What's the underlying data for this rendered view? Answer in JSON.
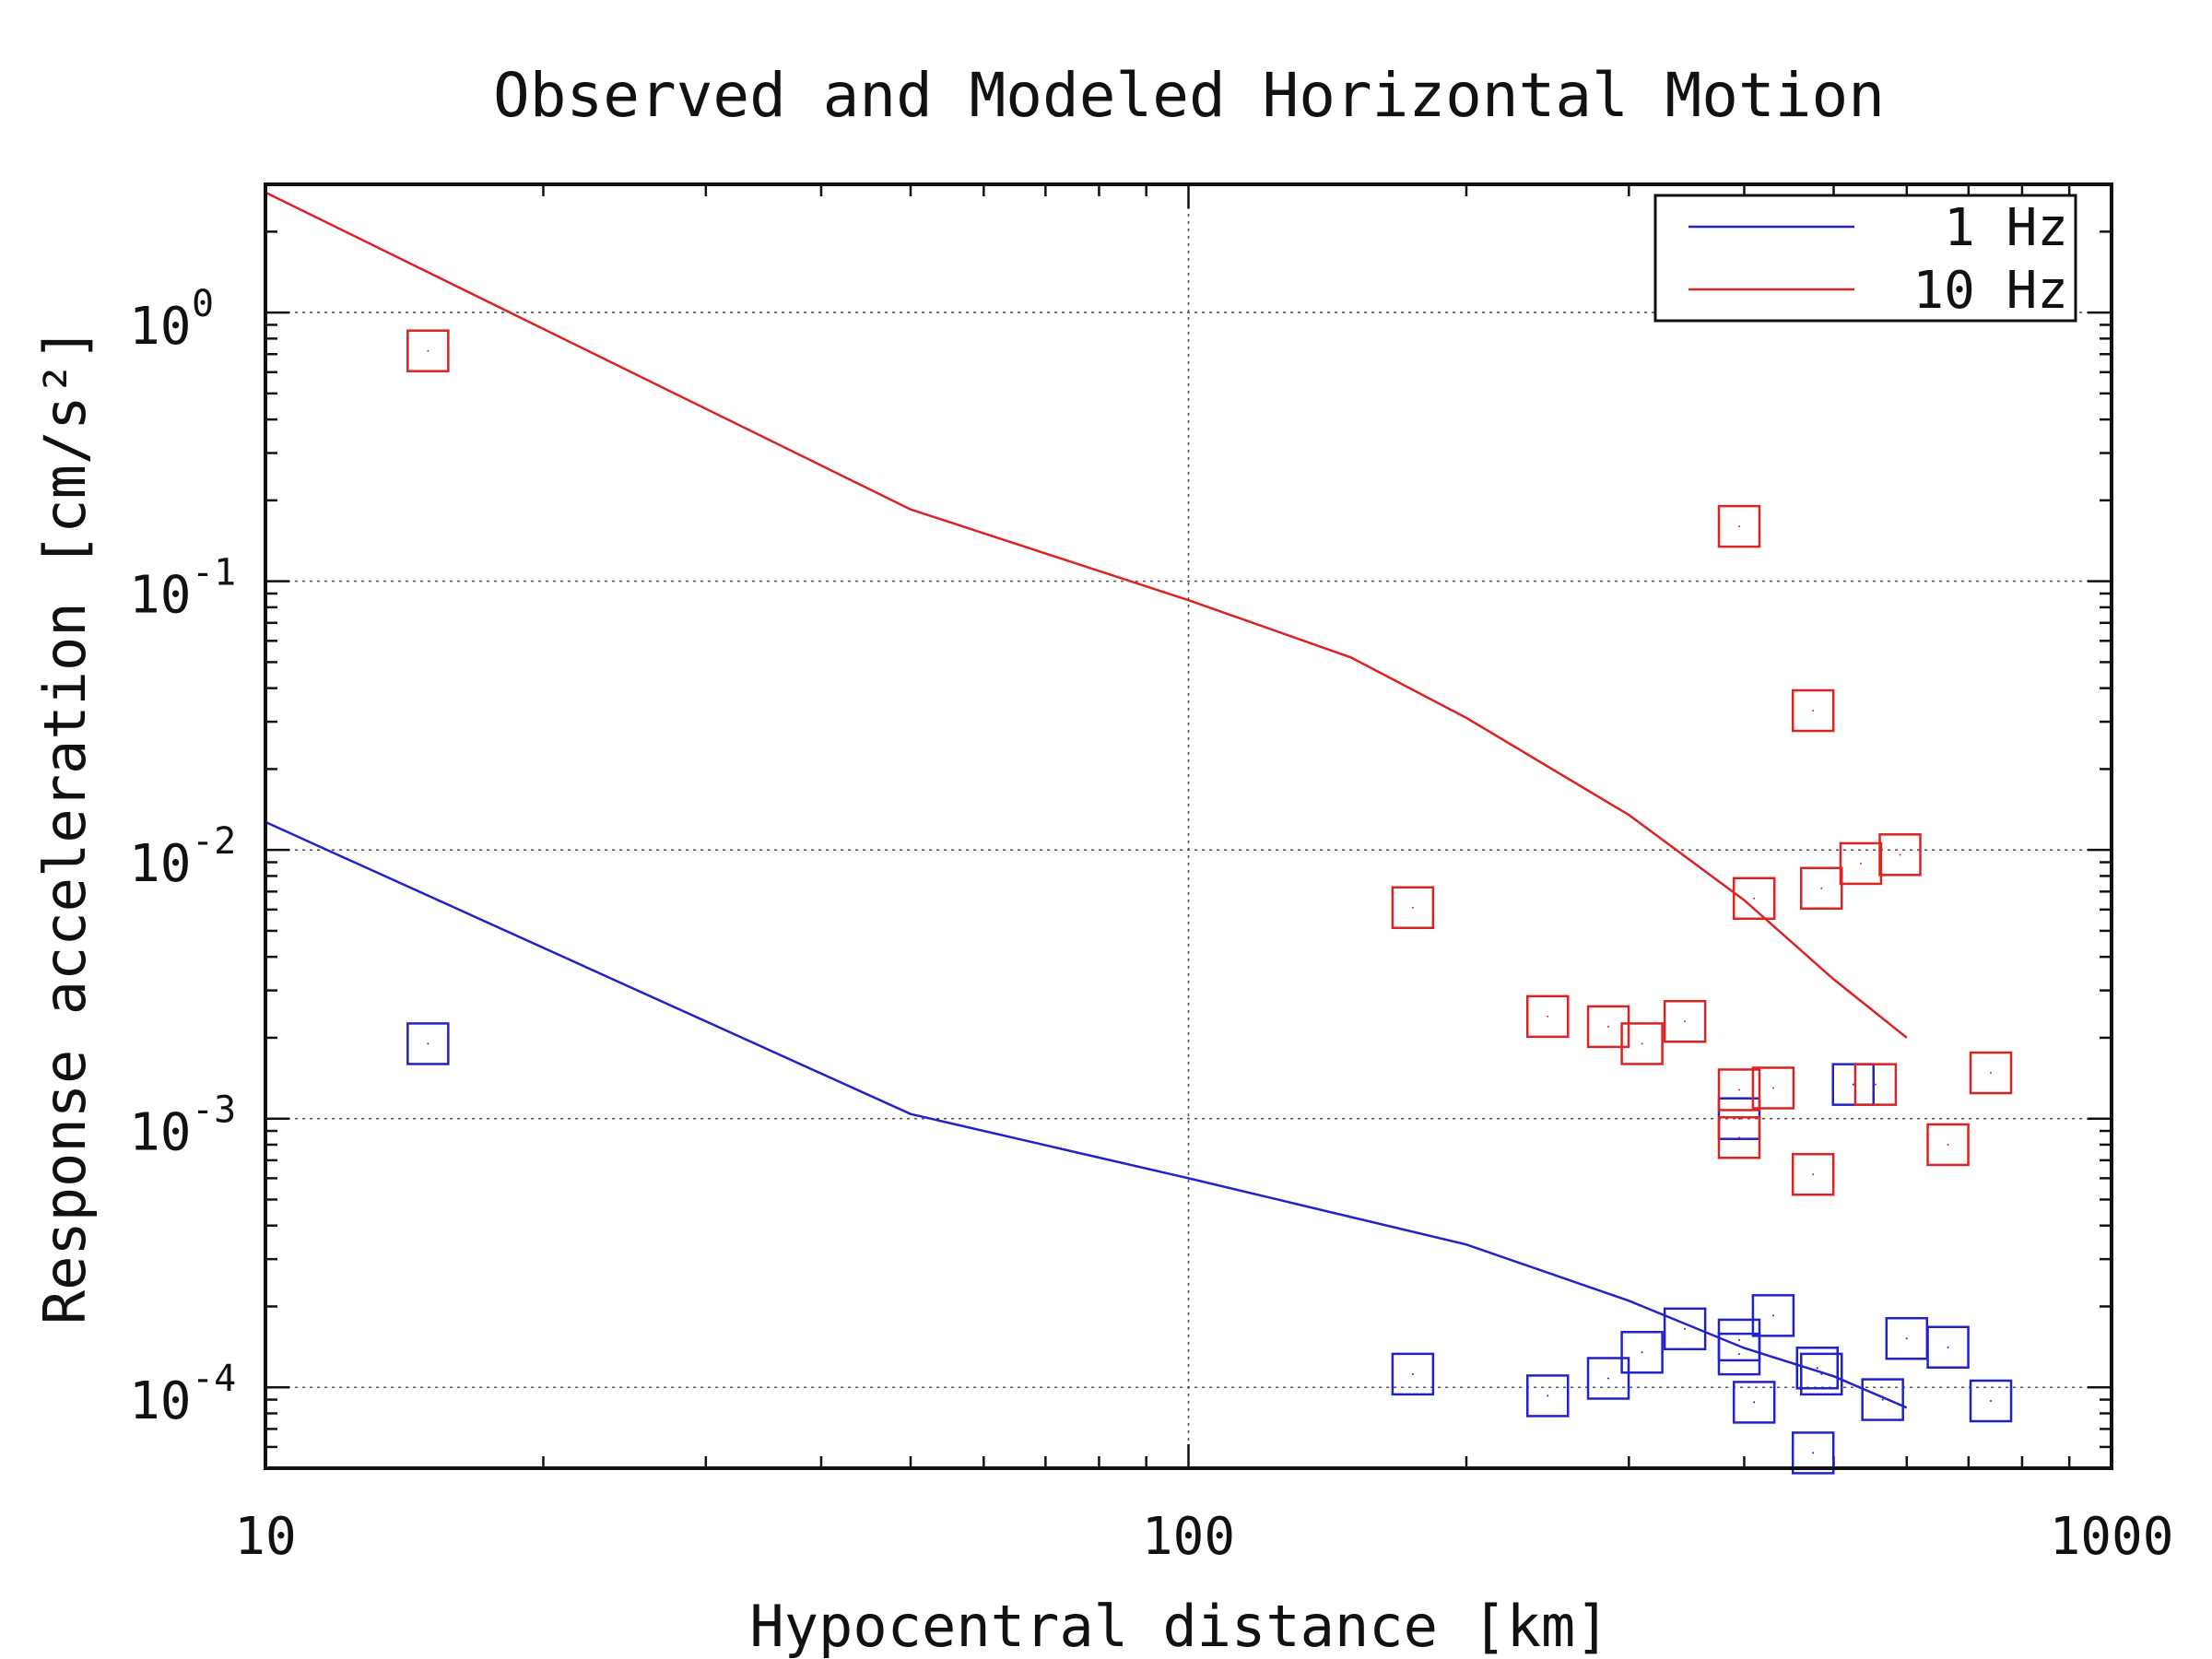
{
  "chart_data": {
    "type": "scatter",
    "title": "Observed and Modeled Horizontal Motion",
    "xlabel": "Hypocentral distance [km]",
    "ylabel": "Response acceleration [cm/s²]",
    "xscale": "log",
    "yscale": "log",
    "xlim": [
      10,
      1000
    ],
    "ylim": [
      5e-05,
      3
    ],
    "grid": true,
    "legend_position": "top-right",
    "x_ticks": [
      {
        "value": 10,
        "label": "10"
      },
      {
        "value": 100,
        "label": "100"
      },
      {
        "value": 1000,
        "label": "1000"
      }
    ],
    "y_ticks": [
      {
        "value": 1,
        "base": "10",
        "exp": "0"
      },
      {
        "value": 0.1,
        "base": "10",
        "exp": "-1"
      },
      {
        "value": 0.01,
        "base": "10",
        "exp": "-2"
      },
      {
        "value": 0.001,
        "base": "10",
        "exp": "-3"
      },
      {
        "value": 0.0001,
        "base": "10",
        "exp": "-4"
      }
    ],
    "series": [
      {
        "name": "1 Hz",
        "color": "#2222cc",
        "model_line": [
          [
            10,
            0.0127
          ],
          [
            50,
            0.00104
          ],
          [
            100,
            0.0006
          ],
          [
            200,
            0.00034
          ],
          [
            300,
            0.00021
          ],
          [
            400,
            0.00014
          ],
          [
            500,
            0.00011
          ],
          [
            600,
            8.4e-05
          ]
        ],
        "observed": [
          [
            15,
            0.0019
          ],
          [
            175,
            0.000112
          ],
          [
            245,
            9.3e-05
          ],
          [
            285,
            0.000108
          ],
          [
            310,
            0.000135
          ],
          [
            345,
            0.000165
          ],
          [
            395,
            0.00015
          ],
          [
            395,
            0.000133
          ],
          [
            410,
            8.8e-05
          ],
          [
            430,
            0.000185
          ],
          [
            480,
            0.000118
          ],
          [
            485,
            0.000112
          ],
          [
            475,
            5.7e-05
          ],
          [
            525,
            0.00134
          ],
          [
            565,
            9e-05
          ],
          [
            600,
            0.000152
          ],
          [
            665,
            0.000141
          ],
          [
            740,
            8.9e-05
          ],
          [
            395,
            0.001
          ]
        ]
      },
      {
        "name": "10 Hz",
        "color": "#dd2222",
        "model_line": [
          [
            10,
            2.8
          ],
          [
            50,
            0.185
          ],
          [
            100,
            0.085
          ],
          [
            150,
            0.052
          ],
          [
            200,
            0.031
          ],
          [
            300,
            0.0135
          ],
          [
            400,
            0.0065
          ],
          [
            500,
            0.0033
          ],
          [
            600,
            0.002
          ]
        ],
        "observed": [
          [
            15,
            0.72
          ],
          [
            175,
            0.0061
          ],
          [
            245,
            0.0024
          ],
          [
            285,
            0.0022
          ],
          [
            310,
            0.0019
          ],
          [
            345,
            0.0023
          ],
          [
            395,
            0.16
          ],
          [
            395,
            0.00128
          ],
          [
            395,
            0.00085
          ],
          [
            410,
            0.0066
          ],
          [
            430,
            0.0013
          ],
          [
            475,
            0.033
          ],
          [
            475,
            0.00062
          ],
          [
            485,
            0.0072
          ],
          [
            535,
            0.0089
          ],
          [
            555,
            0.00134
          ],
          [
            590,
            0.0096
          ],
          [
            665,
            0.0008
          ],
          [
            740,
            0.00148
          ]
        ]
      }
    ]
  }
}
